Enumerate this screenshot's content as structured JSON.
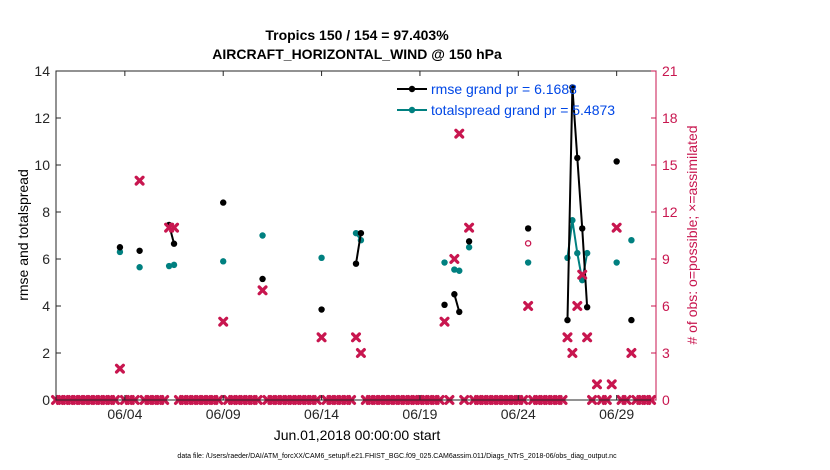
{
  "chart_data": {
    "type": "line",
    "title": "Tropics 150 / 154 = 97.403%",
    "subtitle": "AIRCRAFT_HORIZONTAL_WIND @ 150 hPa",
    "xlabel": "Jun.01,2018 00:00:00 start",
    "ylabel": "rmse and totalspread",
    "y2label": "# of obs: o=possible; ×=assimilated",
    "footer": "data file: /Users/raeder/DAI/ATM_forcXX/CAM6_setup/f.e21.FHIST_BGC.f09_025.CAM6assim.011/Diags_NTrS_2018-06/obs_diag_output.nc",
    "xlim": [
      0.5,
      31.0
    ],
    "ylim": [
      0,
      14
    ],
    "y2lim": [
      0,
      21
    ],
    "x_ticks": [
      {
        "x": 4,
        "label": "06/04"
      },
      {
        "x": 9,
        "label": "06/09"
      },
      {
        "x": 14,
        "label": "06/14"
      },
      {
        "x": 19,
        "label": "06/19"
      },
      {
        "x": 24,
        "label": "06/24"
      },
      {
        "x": 29,
        "label": "06/29"
      }
    ],
    "y_ticks": [
      "0",
      "2",
      "4",
      "6",
      "8",
      "10",
      "12",
      "14"
    ],
    "y2_ticks": [
      "0",
      "3",
      "6",
      "9",
      "12",
      "15",
      "18",
      "21"
    ],
    "legend": {
      "location": "top-right",
      "entries": [
        "rmse grand pr = 6.1688",
        "totalspread grand pr = 5.4873"
      ]
    },
    "colors": {
      "rmse": "#000000",
      "spread": "#008080",
      "obs": "#c8164f",
      "axis_right": "#c8164f",
      "legend_text": "#0047e6"
    },
    "series": [
      {
        "name": "rmse",
        "segments": [
          [
            [
              3.75,
              6.5
            ]
          ],
          [
            [
              4.75,
              6.35
            ]
          ],
          [
            [
              6.25,
              7.45
            ],
            [
              6.5,
              6.65
            ]
          ],
          [
            [
              9.0,
              8.4
            ]
          ],
          [
            [
              11.0,
              5.15
            ]
          ],
          [
            [
              14.0,
              3.85
            ]
          ],
          [
            [
              15.75,
              5.8
            ],
            [
              16.0,
              7.1
            ]
          ],
          [
            [
              20.25,
              4.05
            ]
          ],
          [
            [
              20.75,
              4.5
            ],
            [
              21.0,
              3.75
            ]
          ],
          [
            [
              21.5,
              6.75
            ]
          ],
          [
            [
              24.5,
              7.3
            ]
          ],
          [
            [
              26.5,
              3.4
            ],
            [
              26.75,
              13.3
            ],
            [
              27.0,
              10.3
            ],
            [
              27.25,
              7.3
            ],
            [
              27.5,
              3.95
            ]
          ],
          [
            [
              29.0,
              10.15
            ]
          ],
          [
            [
              29.75,
              3.4
            ]
          ]
        ]
      },
      {
        "name": "totalspread",
        "segments": [
          [
            [
              3.75,
              6.3
            ]
          ],
          [
            [
              4.75,
              5.65
            ]
          ],
          [
            [
              6.25,
              5.7
            ],
            [
              6.5,
              5.75
            ]
          ],
          [
            [
              9.0,
              5.9
            ]
          ],
          [
            [
              11.0,
              7.0
            ]
          ],
          [
            [
              14.0,
              6.05
            ]
          ],
          [
            [
              15.75,
              7.1
            ],
            [
              16.0,
              6.8
            ]
          ],
          [
            [
              20.25,
              5.85
            ]
          ],
          [
            [
              20.75,
              5.55
            ],
            [
              21.0,
              5.5
            ]
          ],
          [
            [
              21.5,
              6.5
            ]
          ],
          [
            [
              24.5,
              5.85
            ]
          ],
          [
            [
              26.5,
              6.05
            ],
            [
              26.75,
              7.65
            ],
            [
              27.0,
              6.25
            ],
            [
              27.25,
              5.1
            ],
            [
              27.5,
              6.25
            ]
          ],
          [
            [
              29.0,
              5.85
            ]
          ],
          [
            [
              29.75,
              6.8
            ]
          ]
        ]
      }
    ],
    "obs_assimilated": {
      "x": [
        3.75,
        4.75,
        6.25,
        6.5,
        9.0,
        11.0,
        14.0,
        15.75,
        16.0,
        20.25,
        20.75,
        21.0,
        21.5,
        24.5,
        26.5,
        26.75,
        27.0,
        27.25,
        27.5,
        28.0,
        28.75,
        29.0,
        29.75
      ],
      "y": [
        2,
        14,
        11,
        11,
        5,
        7,
        4,
        4,
        3,
        5,
        9,
        17,
        11,
        6,
        4,
        3,
        6,
        8,
        4,
        1,
        1,
        11,
        3
      ]
    },
    "obs_possible": {
      "x": [
        24.5
      ],
      "y": [
        10
      ]
    }
  }
}
